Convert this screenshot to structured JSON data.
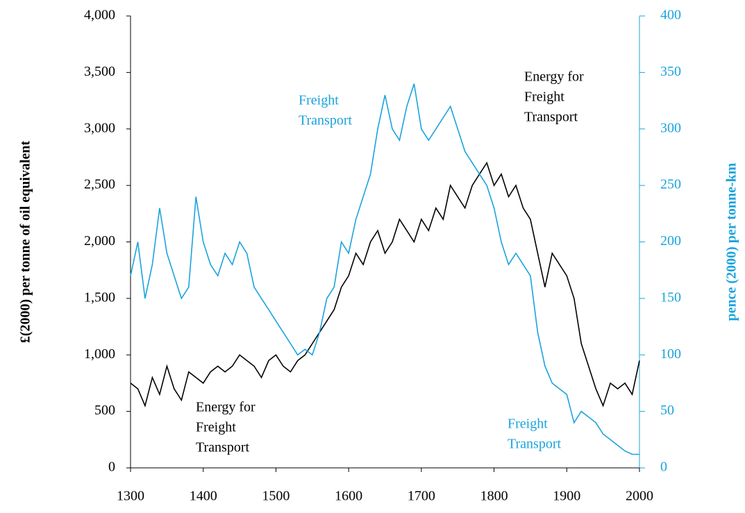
{
  "chart_data": {
    "type": "line",
    "x": [
      1300,
      1310,
      1320,
      1330,
      1340,
      1350,
      1360,
      1370,
      1380,
      1390,
      1400,
      1410,
      1420,
      1430,
      1440,
      1450,
      1460,
      1470,
      1480,
      1490,
      1500,
      1510,
      1520,
      1530,
      1540,
      1550,
      1560,
      1570,
      1580,
      1590,
      1600,
      1610,
      1620,
      1630,
      1640,
      1650,
      1660,
      1670,
      1680,
      1690,
      1700,
      1710,
      1720,
      1730,
      1740,
      1750,
      1760,
      1770,
      1780,
      1790,
      1800,
      1810,
      1820,
      1830,
      1840,
      1850,
      1860,
      1870,
      1880,
      1890,
      1900,
      1910,
      1920,
      1930,
      1940,
      1950,
      1960,
      1970,
      1980,
      1990,
      2000
    ],
    "series": [
      {
        "name": "Energy for Freight Transport",
        "color": "#000000",
        "axis": "y",
        "values": [
          750,
          700,
          550,
          800,
          650,
          900,
          700,
          600,
          850,
          800,
          750,
          850,
          900,
          850,
          900,
          1000,
          950,
          900,
          800,
          950,
          1000,
          900,
          850,
          950,
          1000,
          1100,
          1200,
          1300,
          1400,
          1600,
          1700,
          1900,
          1800,
          2000,
          2100,
          1900,
          2000,
          2200,
          2100,
          2000,
          2200,
          2100,
          2300,
          2200,
          2500,
          2400,
          2300,
          2500,
          2600,
          2700,
          2500,
          2600,
          2400,
          2500,
          2300,
          2200,
          1900,
          1600,
          1900,
          1800,
          1700,
          1500,
          1100,
          900,
          700,
          550,
          750,
          700,
          750,
          650,
          950
        ]
      },
      {
        "name": "Freight Transport",
        "color": "#1aa3de",
        "axis": "y2",
        "values": [
          170,
          200,
          150,
          180,
          230,
          190,
          170,
          150,
          160,
          240,
          200,
          180,
          170,
          190,
          180,
          200,
          190,
          160,
          150,
          140,
          130,
          120,
          110,
          100,
          105,
          100,
          120,
          150,
          160,
          200,
          190,
          220,
          240,
          260,
          300,
          330,
          300,
          290,
          320,
          340,
          300,
          290,
          300,
          310,
          320,
          300,
          280,
          270,
          260,
          250,
          230,
          200,
          180,
          190,
          180,
          170,
          120,
          90,
          75,
          70,
          65,
          40,
          50,
          45,
          40,
          30,
          25,
          20,
          15,
          12,
          12
        ]
      }
    ],
    "xlim": [
      1300,
      2000
    ],
    "xticks": [
      1300,
      1400,
      1500,
      1600,
      1700,
      1800,
      1900,
      2000
    ],
    "ylim": [
      0,
      4000
    ],
    "yticks": [
      0,
      500,
      {
        "value": 1000,
        "label": "1,000"
      },
      {
        "value": 1500,
        "label": "1,500"
      },
      {
        "value": 2000,
        "label": "2,000"
      },
      {
        "value": 2500,
        "label": "2,500"
      },
      {
        "value": 3000,
        "label": "3,000"
      },
      {
        "value": 3500,
        "label": "3,500"
      },
      {
        "value": 4000,
        "label": "4,000"
      }
    ],
    "y2lim": [
      0,
      400
    ],
    "y2ticks": [
      0,
      50,
      100,
      150,
      200,
      250,
      300,
      350,
      400
    ],
    "ylabel": "£(2000) per tonne of oil equivalent",
    "y2label": "pence (2000) per tonne-km",
    "annotations": [
      {
        "lines": [
          "Energy for",
          "Freight",
          "Transport"
        ],
        "color": "#000000"
      },
      {
        "lines": [
          "Freight",
          "Transport"
        ],
        "color": "#1aa3de"
      },
      {
        "lines": [
          "Energy for",
          "Freight",
          "Transport"
        ],
        "color": "#000000"
      },
      {
        "lines": [
          "Freight",
          "Transport"
        ],
        "color": "#1aa3de"
      }
    ]
  }
}
